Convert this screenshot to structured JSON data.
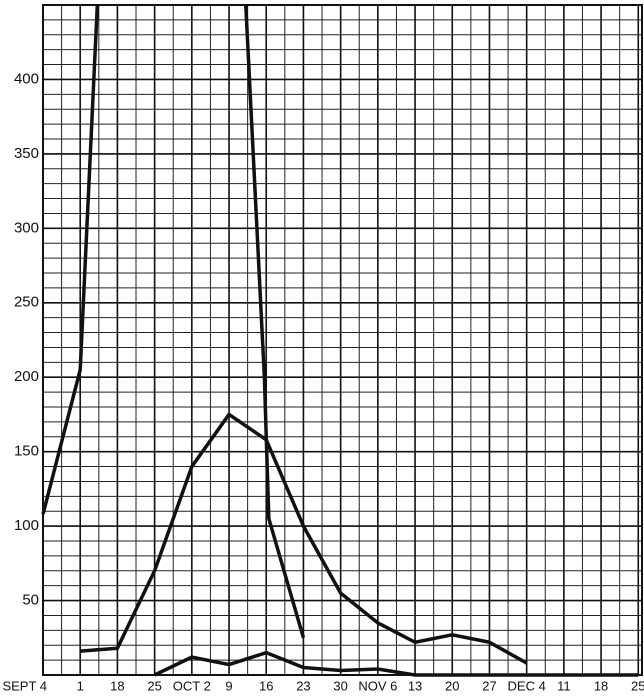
{
  "chart_data": {
    "type": "line",
    "xlim": [
      0,
      16.1
    ],
    "ylim": [
      0,
      450
    ],
    "xticks": [
      {
        "value": 0,
        "label": "SEPT 4"
      },
      1,
      {
        "value": 2,
        "label": "18"
      },
      {
        "value": 3,
        "label": "25"
      },
      {
        "value": 4,
        "label": "OCT 2"
      },
      {
        "value": 5,
        "label": "9"
      },
      {
        "value": 6,
        "label": "16"
      },
      {
        "value": 7,
        "label": "23"
      },
      {
        "value": 8,
        "label": "30"
      },
      {
        "value": 9,
        "label": "NOV 6"
      },
      {
        "value": 10,
        "label": "13"
      },
      {
        "value": 11,
        "label": "20"
      },
      {
        "value": 12,
        "label": "27"
      },
      {
        "value": 13,
        "label": "DEC 4"
      },
      {
        "value": 14,
        "label": "11"
      },
      {
        "value": 15,
        "label": "18"
      },
      {
        "value": 16,
        "label": "25"
      }
    ],
    "yticks": [
      50,
      100,
      150,
      200,
      250,
      300,
      350,
      400
    ],
    "grid": true,
    "series": [
      {
        "color": "#111111",
        "x": [
          0,
          1,
          1.46
        ],
        "values": [
          108,
          205,
          450
        ]
      },
      {
        "color": "#111111",
        "x": [
          5.45,
          5.95,
          6.07,
          7
        ],
        "values": [
          450,
          200,
          105,
          25
        ]
      },
      {
        "color": "#111111",
        "x": [
          1,
          2,
          3,
          4,
          5,
          6,
          7,
          8,
          9,
          10,
          11,
          12,
          13
        ],
        "values": [
          16,
          18,
          70,
          140,
          175,
          158,
          100,
          55,
          35,
          22,
          27,
          22,
          8
        ]
      },
      {
        "color": "#111111",
        "x": [
          3,
          4,
          5,
          6,
          7,
          8,
          9,
          10,
          11,
          12,
          13,
          14,
          15,
          16
        ],
        "values": [
          0,
          12,
          7,
          15,
          5,
          3,
          4,
          0,
          0,
          0,
          0,
          0,
          0,
          0
        ]
      }
    ]
  }
}
